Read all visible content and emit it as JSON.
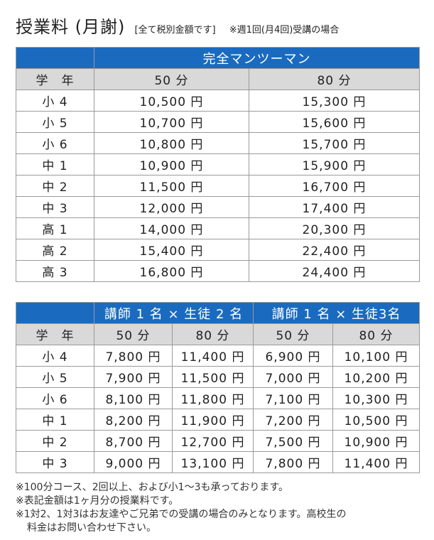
{
  "header": {
    "title": "授業料 (月謝)",
    "note1": "[全て税別金額です]",
    "note2": "※週1回(月4回)受講の場合"
  },
  "table1": {
    "course": "完全マンツーマン",
    "grade_header": "学　年",
    "col_headers": [
      "50 分",
      "80 分"
    ],
    "rows": [
      {
        "grade": "小 4",
        "v50": "10,500 円",
        "v80": "15,300 円"
      },
      {
        "grade": "小 5",
        "v50": "10,700 円",
        "v80": "15,600 円"
      },
      {
        "grade": "小 6",
        "v50": "10,800 円",
        "v80": "15,700 円"
      },
      {
        "grade": "中 1",
        "v50": "10,900 円",
        "v80": "15,900 円"
      },
      {
        "grade": "中 2",
        "v50": "11,500 円",
        "v80": "16,700 円"
      },
      {
        "grade": "中 3",
        "v50": "12,000 円",
        "v80": "17,400 円"
      },
      {
        "grade": "高 1",
        "v50": "14,000 円",
        "v80": "20,300 円"
      },
      {
        "grade": "高 2",
        "v50": "15,400 円",
        "v80": "22,400 円"
      },
      {
        "grade": "高 3",
        "v50": "16,800 円",
        "v80": "24,400 円"
      }
    ]
  },
  "table2": {
    "course_a": "講師 1 名 × 生徒 2 名",
    "course_b": "講師 1 名 × 生徒3名",
    "grade_header": "学　年",
    "col_headers": [
      "50 分",
      "80 分",
      "50 分",
      "80 分"
    ],
    "rows": [
      {
        "grade": "小 4",
        "a50": "7,800 円",
        "a80": "11,400 円",
        "b50": "6,900 円",
        "b80": "10,100 円"
      },
      {
        "grade": "小 5",
        "a50": "7,900 円",
        "a80": "11,500 円",
        "b50": "7,000 円",
        "b80": "10,200 円"
      },
      {
        "grade": "小 6",
        "a50": "8,100 円",
        "a80": "11,800 円",
        "b50": "7,100 円",
        "b80": "10,300 円"
      },
      {
        "grade": "中 1",
        "a50": "8,200 円",
        "a80": "11,900 円",
        "b50": "7,200 円",
        "b80": "10,500 円"
      },
      {
        "grade": "中 2",
        "a50": "8,700 円",
        "a80": "12,700 円",
        "b50": "7,500 円",
        "b80": "10,900 円"
      },
      {
        "grade": "中 3",
        "a50": "9,000 円",
        "a80": "13,100 円",
        "b50": "7,800 円",
        "b80": "11,400 円"
      }
    ]
  },
  "notes": [
    "※100分コース、2回以上、および小1～3も承っております。",
    "※表記金額は1ヶ月分の授業料です。",
    "※1対2、1対3はお友達やご兄弟での受講の場合のみとなります。高校生の",
    "料金はお問い合わせ下さい。"
  ]
}
